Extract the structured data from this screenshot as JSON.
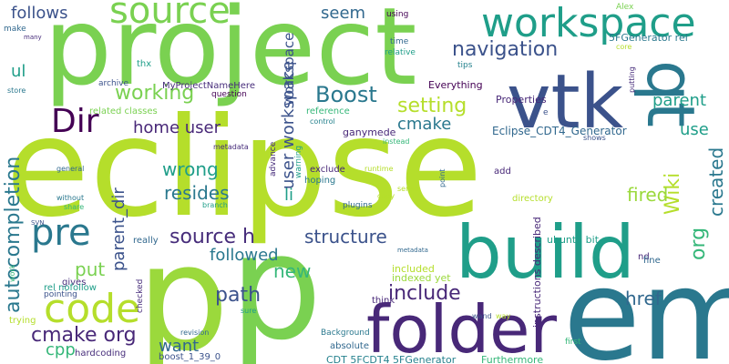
{
  "words": [
    {
      "text": "eclipse",
      "color": "#b5de2b"
    },
    {
      "text": "project",
      "color": "#7ad151"
    },
    {
      "text": "em",
      "color": "#2a788e"
    },
    {
      "text": "p",
      "color": "#9bd93c"
    },
    {
      "text": "p",
      "color": "#7ad151"
    },
    {
      "text": "folder",
      "color": "#482878"
    },
    {
      "text": "build",
      "color": "#1f9e89"
    },
    {
      "text": "vtk",
      "color": "#3b528b"
    },
    {
      "text": "qt",
      "color": "#2a788e"
    },
    {
      "text": "workspace",
      "color": "#1f9e89"
    },
    {
      "text": "source",
      "color": "#7ad151"
    },
    {
      "text": "pre",
      "color": "#2a788e"
    },
    {
      "text": "code",
      "color": "#b5de2b"
    },
    {
      "text": "Dir",
      "color": "#440154"
    },
    {
      "text": "navigation",
      "color": "#3b528b"
    },
    {
      "text": "autocompletion",
      "color": "#2a788e"
    },
    {
      "text": "source h",
      "color": "#472d7b"
    },
    {
      "text": "cmake org",
      "color": "#482878"
    },
    {
      "text": "Boost",
      "color": "#2a788e"
    },
    {
      "text": "working",
      "color": "#7ad151"
    },
    {
      "text": "setting",
      "color": "#b5de2b"
    },
    {
      "text": "Wiki",
      "color": "#b5de2b"
    },
    {
      "text": "org",
      "color": "#35b779"
    },
    {
      "text": "created",
      "color": "#2a788e"
    },
    {
      "text": "parent",
      "color": "#1f9e89"
    },
    {
      "text": "use",
      "color": "#1f9e89"
    },
    {
      "text": "structure",
      "color": "#3b528b"
    },
    {
      "text": "path",
      "color": "#3b528b"
    },
    {
      "text": "include",
      "color": "#482878"
    },
    {
      "text": "followed",
      "color": "#2a788e"
    },
    {
      "text": "new",
      "color": "#35b779"
    },
    {
      "text": "put",
      "color": "#7ad151"
    },
    {
      "text": "href",
      "color": "#31688e"
    },
    {
      "text": "fired",
      "color": "#9bd93c"
    },
    {
      "text": "wrong",
      "color": "#1f9e89"
    },
    {
      "text": "resides",
      "color": "#2a788e"
    },
    {
      "text": "home user",
      "color": "#482878"
    },
    {
      "text": "parent_dir",
      "color": "#3b528b"
    },
    {
      "text": "user workspace",
      "color": "#3b528b"
    },
    {
      "text": "cmake",
      "color": "#2a788e"
    },
    {
      "text": "follows",
      "color": "#3b528b"
    },
    {
      "text": "seem",
      "color": "#31688e"
    },
    {
      "text": "ul",
      "color": "#1f9e89"
    },
    {
      "text": "li",
      "color": "#1f9e89"
    },
    {
      "text": "want",
      "color": "#31688e"
    },
    {
      "text": "cpp",
      "color": "#35b779"
    },
    {
      "text": "Eclipse_CDT4_Generator",
      "color": "#31688e"
    },
    {
      "text": "ganymede",
      "color": "#482878"
    },
    {
      "text": "5FGenerator rel",
      "color": "#2a788e"
    },
    {
      "text": "Everything",
      "color": "#440154"
    },
    {
      "text": "Properties",
      "color": "#482878"
    },
    {
      "text": "ubuntu bit",
      "color": "#1f9e89"
    },
    {
      "text": "CDT 5FCDT4 5FGenerator",
      "color": "#26828e"
    },
    {
      "text": "Furthermore",
      "color": "#35b779"
    },
    {
      "text": "instructions described",
      "color": "#482878"
    },
    {
      "text": "included",
      "color": "#b5de2b"
    },
    {
      "text": "indexed yet",
      "color": "#9bd93c"
    },
    {
      "text": "MyProjectNameHere",
      "color": "#472d7b"
    },
    {
      "text": "related classes",
      "color": "#7ad151"
    },
    {
      "text": "thx",
      "color": "#1f9e89"
    },
    {
      "text": "archive",
      "color": "#3b528b"
    },
    {
      "text": "question",
      "color": "#440154"
    },
    {
      "text": "reference",
      "color": "#35b779"
    },
    {
      "text": "exclude",
      "color": "#482878"
    },
    {
      "text": "hoping",
      "color": "#2a788e"
    },
    {
      "text": "advance",
      "color": "#472d7b"
    },
    {
      "text": "warning",
      "color": "#1f9e89"
    },
    {
      "text": "really",
      "color": "#31688e"
    },
    {
      "text": "gives",
      "color": "#472d7b"
    },
    {
      "text": "rel nofollow",
      "color": "#1f9e89"
    },
    {
      "text": "pointing",
      "color": "#3b528b"
    },
    {
      "text": "trying",
      "color": "#b5de2b"
    },
    {
      "text": "hardcoding",
      "color": "#472d7b"
    },
    {
      "text": "boost_1_39_0",
      "color": "#3b528b"
    },
    {
      "text": "absolute",
      "color": "#31688e"
    },
    {
      "text": "Background",
      "color": "#2a788e"
    },
    {
      "text": "think",
      "color": "#482878"
    },
    {
      "text": "directory",
      "color": "#b5de2b"
    },
    {
      "text": "add",
      "color": "#482878"
    },
    {
      "text": "nd",
      "color": "#482878"
    },
    {
      "text": "fine",
      "color": "#31688e"
    },
    {
      "text": "first",
      "color": "#35b779"
    },
    {
      "text": "using",
      "color": "#440154"
    },
    {
      "text": "time",
      "color": "#31688e"
    },
    {
      "text": "relative",
      "color": "#1f9e89"
    },
    {
      "text": "tips",
      "color": "#26828e"
    },
    {
      "text": "putting",
      "color": "#472d7b"
    },
    {
      "text": "Alex",
      "color": "#7ad151"
    },
    {
      "text": "core",
      "color": "#b5de2b"
    },
    {
      "text": "make",
      "color": "#31688e"
    },
    {
      "text": "many",
      "color": "#472d7b"
    },
    {
      "text": "store",
      "color": "#2a788e"
    },
    {
      "text": "general",
      "color": "#31688e"
    },
    {
      "text": "without",
      "color": "#2a788e"
    },
    {
      "text": "share",
      "color": "#35b779"
    },
    {
      "text": "SVN",
      "color": "#3b528b"
    },
    {
      "text": "work",
      "color": "#35b779"
    },
    {
      "text": "checked",
      "color": "#472d7b"
    },
    {
      "text": "revision",
      "color": "#31688e"
    },
    {
      "text": "sure",
      "color": "#1f9e89"
    },
    {
      "text": "wand",
      "color": "#3b528b"
    },
    {
      "text": "way",
      "color": "#b5de2b"
    },
    {
      "text": "metadata",
      "color": "#472d7b"
    },
    {
      "text": "metadata",
      "color": "#31688e"
    },
    {
      "text": "branch",
      "color": "#1f9e89"
    },
    {
      "text": "plugins",
      "color": "#31688e"
    },
    {
      "text": "copy",
      "color": "#b5de2b"
    },
    {
      "text": "sense",
      "color": "#b5de2b"
    },
    {
      "text": "point",
      "color": "#31688e"
    },
    {
      "text": "runtime",
      "color": "#b5de2b"
    },
    {
      "text": "instead",
      "color": "#35b779"
    },
    {
      "text": "control",
      "color": "#26828e"
    },
    {
      "text": "shows",
      "color": "#3b528b"
    },
    {
      "text": "e",
      "color": "#3b528b"
    }
  ]
}
